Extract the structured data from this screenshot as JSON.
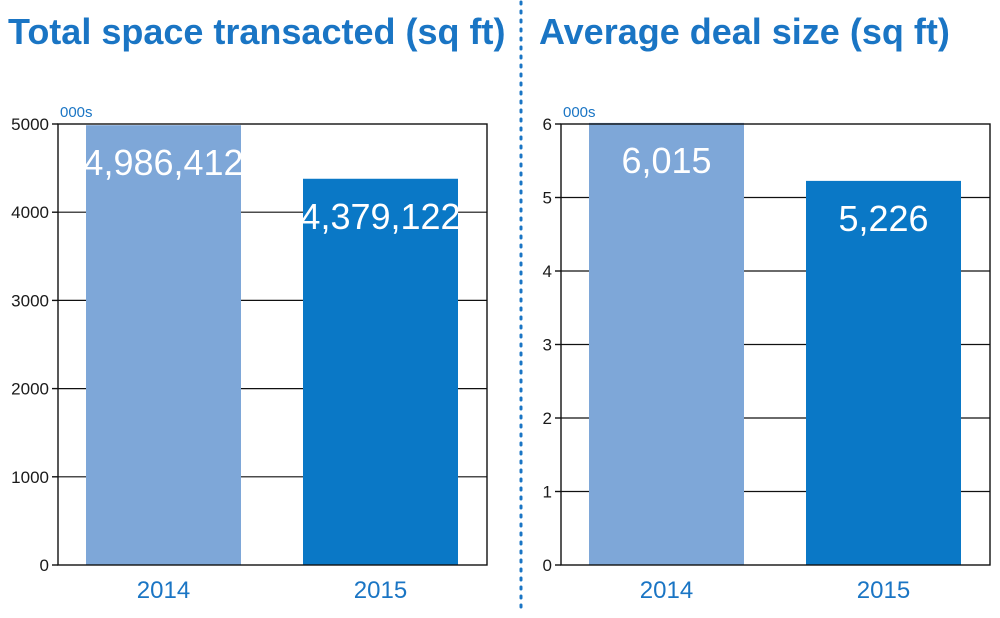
{
  "colors": {
    "title": "#1a75c4",
    "bar_2014": "#7ea7d8",
    "bar_2015": "#0a78c6",
    "grid": "#111111",
    "divider": "#1a75c4"
  },
  "chart_data": [
    {
      "type": "bar",
      "title": "Total space transacted (sq ft)",
      "unit_label": "000s",
      "categories": [
        "2014",
        "2015"
      ],
      "values": [
        4986.412,
        4379.122
      ],
      "data_labels": [
        "4,986,412",
        "4,379,122"
      ],
      "yticks": [
        0,
        1000,
        2000,
        3000,
        4000,
        5000
      ],
      "ylim": [
        0,
        5000
      ],
      "grid": true
    },
    {
      "type": "bar",
      "title": "Average deal size (sq ft)",
      "unit_label": "000s",
      "categories": [
        "2014",
        "2015"
      ],
      "values": [
        6.015,
        5.226
      ],
      "data_labels": [
        "6,015",
        "5,226"
      ],
      "yticks": [
        0,
        1,
        2,
        3,
        4,
        5,
        6
      ],
      "ylim": [
        0,
        6
      ],
      "grid": true
    }
  ]
}
